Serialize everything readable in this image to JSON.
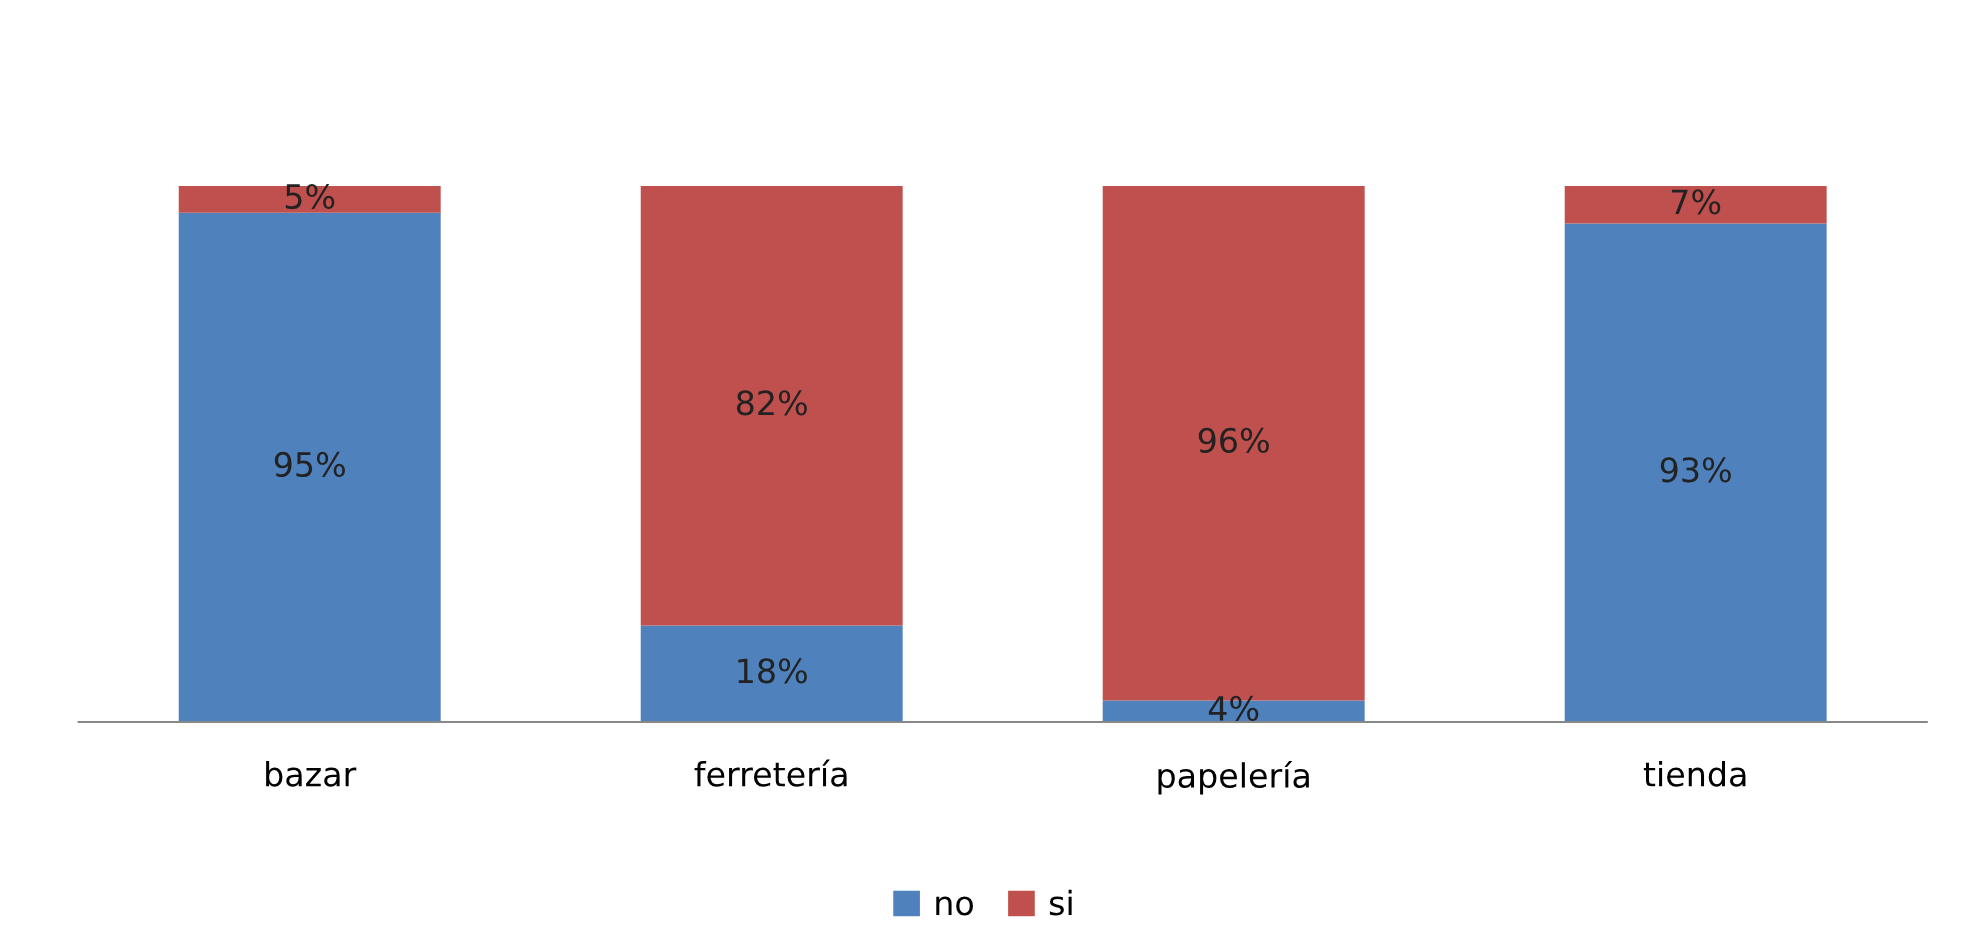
{
  "chart_data": {
    "type": "bar",
    "stacked": true,
    "categories": [
      "bazar",
      "ferretería",
      "papelería",
      "tienda"
    ],
    "series": [
      {
        "name": "no",
        "color": "#4f81bd",
        "values": [
          95,
          18,
          4,
          93
        ],
        "value_labels": [
          "95%",
          "18%",
          "4%",
          "93%"
        ]
      },
      {
        "name": "si",
        "color": "#c0504d",
        "values": [
          5,
          82,
          96,
          7
        ],
        "value_labels": [
          "5%",
          "82%",
          "96%",
          "7%"
        ]
      }
    ],
    "grid": false,
    "legend": "bottom"
  }
}
